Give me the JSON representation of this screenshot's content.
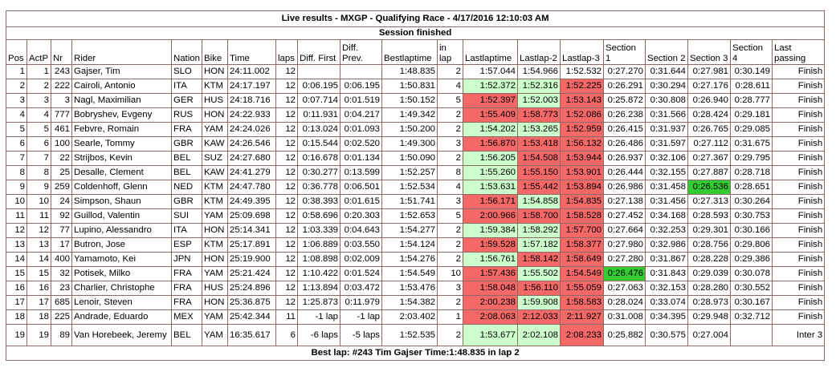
{
  "title": "Live results - MXGP - Qualifying Race - 4/17/2016 12:10:03 AM",
  "status": "Session finished",
  "headers": [
    "Pos",
    "ActP",
    "Nr",
    "Rider",
    "Nation",
    "Bike",
    "Time",
    "laps",
    "Diff. First",
    "Diff. Prev.",
    "Bestlaptime",
    "in lap",
    "Lastlaptime",
    "Lastlap-2",
    "Lastlap-3",
    "Section 1",
    "Section 2",
    "Section 3",
    "Section 4",
    "Last passing"
  ],
  "rows": [
    {
      "pos": "1",
      "actp": "1",
      "nr": "243",
      "rider": "Gajser, Tim",
      "nation": "SLO",
      "bike": "HON",
      "time": "24:11.002",
      "laps": "12",
      "diff_first": "",
      "diff_prev": "",
      "best": "1:48.835",
      "inlap": "2",
      "last": "1:57.044",
      "last2": "1:54.966",
      "last3": "1:52.532",
      "s1": "0:27.270",
      "s2": "0:31.644",
      "s3": "0:27.981",
      "s4": "0:30.149",
      "passing": "Finish",
      "c": [
        "",
        "",
        "",
        "",
        "",
        "",
        ""
      ]
    },
    {
      "pos": "2",
      "actp": "2",
      "nr": "222",
      "rider": "Cairoli, Antonio",
      "nation": "ITA",
      "bike": "KTM",
      "time": "24:17.197",
      "laps": "12",
      "diff_first": "0:06.195",
      "diff_prev": "0:06.195",
      "best": "1:50.831",
      "inlap": "4",
      "last": "1:52.372",
      "last2": "1:52.316",
      "last3": "1:52.225",
      "s1": "0:26.291",
      "s2": "0:30.294",
      "s3": "0:27.176",
      "s4": "0:28.611",
      "passing": "Finish",
      "c": [
        "green",
        "green",
        "red",
        "",
        "",
        "",
        ""
      ]
    },
    {
      "pos": "3",
      "actp": "3",
      "nr": "3",
      "rider": "Nagl, Maximilian",
      "nation": "GER",
      "bike": "HUS",
      "time": "24:18.716",
      "laps": "12",
      "diff_first": "0:07.714",
      "diff_prev": "0:01.519",
      "best": "1:50.152",
      "inlap": "5",
      "last": "1:52.397",
      "last2": "1:52.003",
      "last3": "1:53.143",
      "s1": "0:25.872",
      "s2": "0:30.808",
      "s3": "0:26.940",
      "s4": "0:28.777",
      "passing": "Finish",
      "c": [
        "red",
        "green",
        "red",
        "",
        "",
        "",
        ""
      ]
    },
    {
      "pos": "4",
      "actp": "4",
      "nr": "777",
      "rider": "Bobryshev, Evgeny",
      "nation": "RUS",
      "bike": "HON",
      "time": "24:22.933",
      "laps": "12",
      "diff_first": "0:11.931",
      "diff_prev": "0:04.217",
      "best": "1:49.342",
      "inlap": "2",
      "last": "1:55.409",
      "last2": "1:58.773",
      "last3": "1:52.086",
      "s1": "0:26.238",
      "s2": "0:31.566",
      "s3": "0:28.424",
      "s4": "0:29.181",
      "passing": "Finish",
      "c": [
        "red",
        "red",
        "red",
        "",
        "",
        "",
        ""
      ]
    },
    {
      "pos": "5",
      "actp": "5",
      "nr": "461",
      "rider": "Febvre, Romain",
      "nation": "FRA",
      "bike": "YAM",
      "time": "24:24.026",
      "laps": "12",
      "diff_first": "0:13.024",
      "diff_prev": "0:01.093",
      "best": "1:50.200",
      "inlap": "2",
      "last": "1:54.202",
      "last2": "1:53.265",
      "last3": "1:52.959",
      "s1": "0:26.415",
      "s2": "0:31.937",
      "s3": "0:26.765",
      "s4": "0:29.085",
      "passing": "Finish",
      "c": [
        "green",
        "green",
        "red",
        "",
        "",
        "",
        ""
      ]
    },
    {
      "pos": "6",
      "actp": "6",
      "nr": "100",
      "rider": "Searle, Tommy",
      "nation": "GBR",
      "bike": "KAW",
      "time": "24:26.546",
      "laps": "12",
      "diff_first": "0:15.544",
      "diff_prev": "0:02.520",
      "best": "1:49.300",
      "inlap": "3",
      "last": "1:56.870",
      "last2": "1:53.418",
      "last3": "1:56.132",
      "s1": "0:26.486",
      "s2": "0:31.597",
      "s3": "0:27.112",
      "s4": "0:31.675",
      "passing": "Finish",
      "c": [
        "red",
        "red",
        "red",
        "",
        "",
        "",
        ""
      ]
    },
    {
      "pos": "7",
      "actp": "7",
      "nr": "22",
      "rider": "Strijbos, Kevin",
      "nation": "BEL",
      "bike": "SUZ",
      "time": "24:27.680",
      "laps": "12",
      "diff_first": "0:16.678",
      "diff_prev": "0:01.134",
      "best": "1:50.090",
      "inlap": "2",
      "last": "1:56.205",
      "last2": "1:54.508",
      "last3": "1:53.944",
      "s1": "0:26.937",
      "s2": "0:32.106",
      "s3": "0:27.367",
      "s4": "0:29.795",
      "passing": "Finish",
      "c": [
        "green",
        "red",
        "red",
        "",
        "",
        "",
        ""
      ]
    },
    {
      "pos": "8",
      "actp": "8",
      "nr": "25",
      "rider": "Desalle, Clement",
      "nation": "BEL",
      "bike": "KAW",
      "time": "24:41.279",
      "laps": "12",
      "diff_first": "0:30.277",
      "diff_prev": "0:13.599",
      "best": "1:52.257",
      "inlap": "8",
      "last": "1:55.260",
      "last2": "1:55.150",
      "last3": "1:53.901",
      "s1": "0:26.444",
      "s2": "0:32.155",
      "s3": "0:27.887",
      "s4": "0:28.718",
      "passing": "Finish",
      "c": [
        "green",
        "red",
        "red",
        "",
        "",
        "",
        ""
      ]
    },
    {
      "pos": "9",
      "actp": "9",
      "nr": "259",
      "rider": "Coldenhoff, Glenn",
      "nation": "NED",
      "bike": "KTM",
      "time": "24:47.780",
      "laps": "12",
      "diff_first": "0:36.778",
      "diff_prev": "0:06.501",
      "best": "1:52.534",
      "inlap": "4",
      "last": "1:53.631",
      "last2": "1:55.442",
      "last3": "1:53.894",
      "s1": "0:26.986",
      "s2": "0:31.458",
      "s3": "0:26.536",
      "s4": "0:28.651",
      "passing": "Finish",
      "c": [
        "green",
        "red",
        "red",
        "",
        "",
        "dgreen",
        ""
      ]
    },
    {
      "pos": "10",
      "actp": "10",
      "nr": "24",
      "rider": "Simpson, Shaun",
      "nation": "GBR",
      "bike": "KTM",
      "time": "24:49.395",
      "laps": "12",
      "diff_first": "0:38.393",
      "diff_prev": "0:01.615",
      "best": "1:51.741",
      "inlap": "3",
      "last": "1:56.171",
      "last2": "1:54.858",
      "last3": "1:54.835",
      "s1": "0:27.138",
      "s2": "0:31.456",
      "s3": "0:27.313",
      "s4": "0:30.264",
      "passing": "Finish",
      "c": [
        "red",
        "green",
        "red",
        "",
        "",
        "",
        ""
      ]
    },
    {
      "pos": "11",
      "actp": "11",
      "nr": "92",
      "rider": "Guillod, Valentin",
      "nation": "SUI",
      "bike": "YAM",
      "time": "25:09.698",
      "laps": "12",
      "diff_first": "0:58.696",
      "diff_prev": "0:20.303",
      "best": "1:52.653",
      "inlap": "5",
      "last": "2:00.966",
      "last2": "1:58.700",
      "last3": "1:58.528",
      "s1": "0:27.452",
      "s2": "0:34.168",
      "s3": "0:28.593",
      "s4": "0:30.753",
      "passing": "Finish",
      "c": [
        "red",
        "red",
        "red",
        "",
        "",
        "",
        ""
      ]
    },
    {
      "pos": "12",
      "actp": "12",
      "nr": "77",
      "rider": "Lupino, Alessandro",
      "nation": "ITA",
      "bike": "HON",
      "time": "25:14.341",
      "laps": "12",
      "diff_first": "1:03.339",
      "diff_prev": "0:04.643",
      "best": "1:54.277",
      "inlap": "2",
      "last": "1:59.384",
      "last2": "1:58.292",
      "last3": "1:57.700",
      "s1": "0:27.664",
      "s2": "0:32.253",
      "s3": "0:29.301",
      "s4": "0:30.166",
      "passing": "Finish",
      "c": [
        "green",
        "green",
        "red",
        "",
        "",
        "",
        ""
      ]
    },
    {
      "pos": "13",
      "actp": "13",
      "nr": "17",
      "rider": "Butron, Jose",
      "nation": "ESP",
      "bike": "KTM",
      "time": "25:17.891",
      "laps": "12",
      "diff_first": "1:06.889",
      "diff_prev": "0:03.550",
      "best": "1:54.124",
      "inlap": "2",
      "last": "1:59.528",
      "last2": "1:57.182",
      "last3": "1:58.377",
      "s1": "0:27.980",
      "s2": "0:32.986",
      "s3": "0:28.756",
      "s4": "0:29.806",
      "passing": "Finish",
      "c": [
        "red",
        "green",
        "red",
        "",
        "",
        "",
        ""
      ]
    },
    {
      "pos": "14",
      "actp": "14",
      "nr": "400",
      "rider": "Yamamoto, Kei",
      "nation": "JPN",
      "bike": "HON",
      "time": "25:19.900",
      "laps": "12",
      "diff_first": "1:08.898",
      "diff_prev": "0:02.009",
      "best": "1:54.276",
      "inlap": "2",
      "last": "1:56.761",
      "last2": "1:58.142",
      "last3": "1:58.649",
      "s1": "0:27.280",
      "s2": "0:31.867",
      "s3": "0:28.228",
      "s4": "0:29.386",
      "passing": "Finish",
      "c": [
        "green",
        "red",
        "red",
        "",
        "",
        "",
        ""
      ]
    },
    {
      "pos": "15",
      "actp": "15",
      "nr": "32",
      "rider": "Potisek, Milko",
      "nation": "FRA",
      "bike": "YAM",
      "time": "25:21.424",
      "laps": "12",
      "diff_first": "1:10.422",
      "diff_prev": "0:01.524",
      "best": "1:54.549",
      "inlap": "10",
      "last": "1:57.436",
      "last2": "1:55.502",
      "last3": "1:54.549",
      "s1": "0:26.476",
      "s2": "0:31.843",
      "s3": "0:29.039",
      "s4": "0:30.078",
      "passing": "Finish",
      "c": [
        "red",
        "green",
        "red",
        "dgreen",
        "",
        "",
        ""
      ]
    },
    {
      "pos": "16",
      "actp": "16",
      "nr": "23",
      "rider": "Charlier, Christophe",
      "nation": "FRA",
      "bike": "HUS",
      "time": "25:24.896",
      "laps": "12",
      "diff_first": "1:13.894",
      "diff_prev": "0:03.472",
      "best": "1:53.476",
      "inlap": "3",
      "last": "1:58.048",
      "last2": "1:56.110",
      "last3": "1:55.059",
      "s1": "0:27.063",
      "s2": "0:32.153",
      "s3": "0:28.280",
      "s4": "0:30.552",
      "passing": "Finish",
      "c": [
        "red",
        "red",
        "red",
        "",
        "",
        "",
        ""
      ]
    },
    {
      "pos": "17",
      "actp": "17",
      "nr": "685",
      "rider": "Lenoir, Steven",
      "nation": "FRA",
      "bike": "HON",
      "time": "25:36.875",
      "laps": "12",
      "diff_first": "1:25.873",
      "diff_prev": "0:11.979",
      "best": "1:54.382",
      "inlap": "2",
      "last": "2:00.238",
      "last2": "1:59.908",
      "last3": "1:58.583",
      "s1": "0:28.024",
      "s2": "0:33.074",
      "s3": "0:28.973",
      "s4": "0:30.167",
      "passing": "Finish",
      "c": [
        "red",
        "green",
        "red",
        "",
        "",
        "",
        ""
      ]
    },
    {
      "pos": "18",
      "actp": "18",
      "nr": "225",
      "rider": "Andrade, Eduardo",
      "nation": "MEX",
      "bike": "YAM",
      "time": "25:42.344",
      "laps": "11",
      "diff_first": "-1 lap",
      "diff_prev": "-1 lap",
      "best": "2:03.402",
      "inlap": "1",
      "last": "2:08.063",
      "last2": "2:12.033",
      "last3": "2:11.927",
      "s1": "0:31.008",
      "s2": "0:34.395",
      "s3": "0:29.948",
      "s4": "0:32.712",
      "passing": "Finish",
      "c": [
        "red",
        "red",
        "red",
        "",
        "",
        "",
        ""
      ]
    },
    {
      "pos": "19",
      "actp": "19",
      "nr": "89",
      "rider": "Van Horebeek, Jeremy",
      "nation": "BEL",
      "bike": "YAM",
      "time": "16:35.617",
      "laps": "6",
      "diff_first": "-6 laps",
      "diff_prev": "-5 laps",
      "best": "1:52.535",
      "inlap": "2",
      "last": "1:53.677",
      "last2": "2:02.108",
      "last3": "2:08.233",
      "s1": "0:25.882",
      "s2": "0:30.575",
      "s3": "0:27.004",
      "s4": "",
      "passing": "Inter 3",
      "c": [
        "green",
        "green",
        "red",
        "",
        "",
        "",
        ""
      ]
    }
  ],
  "footer": "Best lap: #243 Tim Gajser Time:1:48.835 in lap 2",
  "colors": {
    "faster": "#ccffcc",
    "slower": "#f46868",
    "best_section": "#33cc33",
    "border": "#8a6a62"
  }
}
